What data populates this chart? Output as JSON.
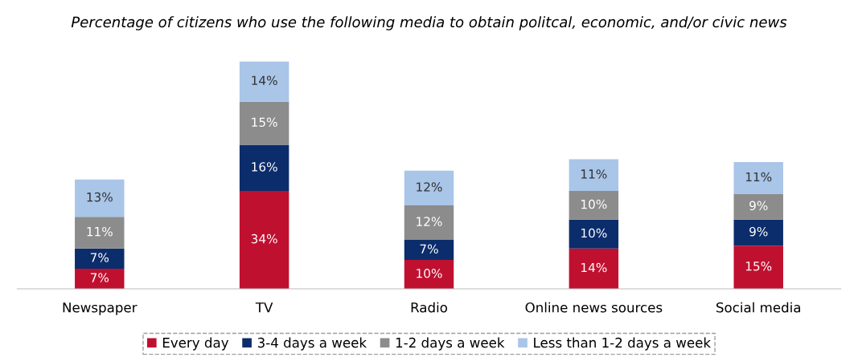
{
  "chart_data": {
    "type": "bar",
    "title": "Percentage of citizens who use the following media to obtain politcal, economic, and/or civic news",
    "categories": [
      "Newspaper",
      "TV",
      "Radio",
      "Online news sources",
      "Social media"
    ],
    "stacked": true,
    "legend": "bottom",
    "grid": false,
    "series": [
      {
        "name": "Every day",
        "color": "#c0102f",
        "values": [
          7,
          34,
          10,
          14,
          15
        ],
        "value_labels": [
          "7%",
          "34%",
          "10%",
          "14%",
          "15%"
        ]
      },
      {
        "name": "3-4 days a week",
        "color": "#0c2d6b",
        "values": [
          7,
          16,
          7,
          10,
          9
        ],
        "value_labels": [
          "7%",
          "16%",
          "7%",
          "10%",
          "9%"
        ]
      },
      {
        "name": "1-2 days a week",
        "color": "#8c8c8c",
        "values": [
          11,
          15,
          12,
          10,
          9
        ],
        "value_labels": [
          "11%",
          "15%",
          "12%",
          "10%",
          "9%"
        ]
      },
      {
        "name": "Less than 1-2 days a week",
        "color": "#a9c5e8",
        "values": [
          13,
          14,
          12,
          11,
          11
        ],
        "value_labels": [
          "13%",
          "14%",
          "12%",
          "11%",
          "11%"
        ]
      }
    ]
  }
}
